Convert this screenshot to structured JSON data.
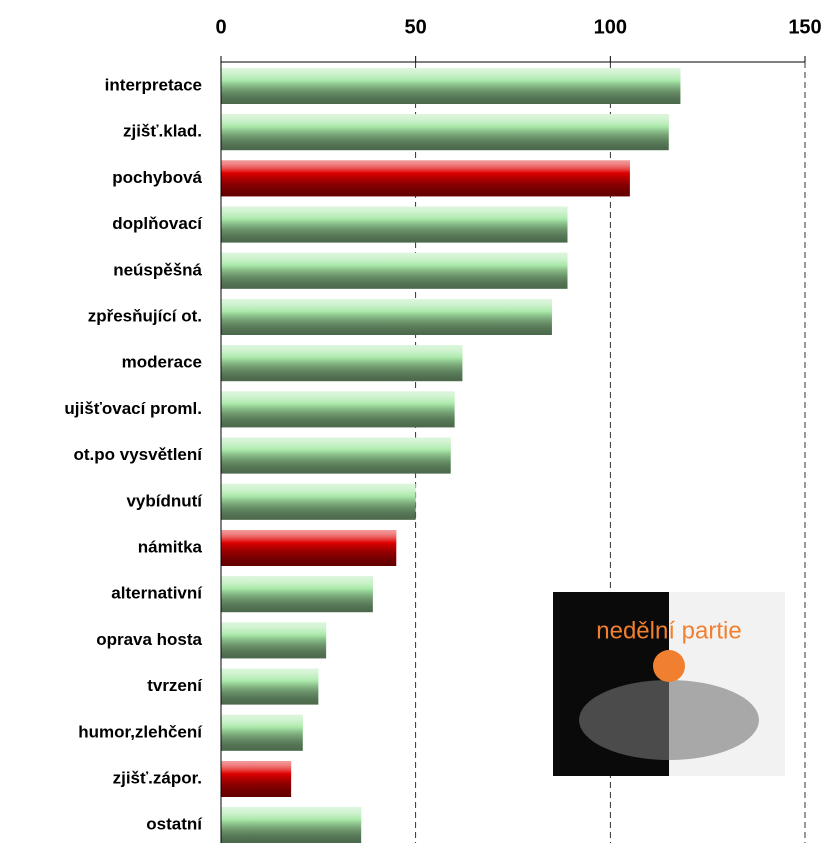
{
  "chart_data": {
    "type": "bar",
    "orientation": "horizontal",
    "categories": [
      "interpretace",
      "zjišť.klad.",
      "pochybová",
      "doplňovací",
      "neúspěšná",
      "zpřesňující ot.",
      "moderace",
      "ujišťovací proml.",
      "ot.po vysvětlení",
      "vybídnutí",
      "námitka",
      "alternativní",
      "oprava hosta",
      "tvrzení",
      "humor,zlehčení",
      "zjišť.zápor.",
      "ostatní"
    ],
    "values": [
      118,
      115,
      105,
      89,
      89,
      85,
      62,
      60,
      59,
      50,
      45,
      39,
      27,
      25,
      21,
      18,
      36
    ],
    "colors": [
      "#a8e8a8",
      "#a8e8a8",
      "#e00000",
      "#a8e8a8",
      "#a8e8a8",
      "#a8e8a8",
      "#a8e8a8",
      "#a8e8a8",
      "#a8e8a8",
      "#a8e8a8",
      "#e00000",
      "#a8e8a8",
      "#a8e8a8",
      "#a8e8a8",
      "#a8e8a8",
      "#e00000",
      "#a8e8a8"
    ],
    "xlim": [
      0,
      150
    ],
    "xticks": [
      0,
      50,
      100,
      150
    ],
    "grid": true
  },
  "inset": {
    "caption": "nedělní partie"
  }
}
